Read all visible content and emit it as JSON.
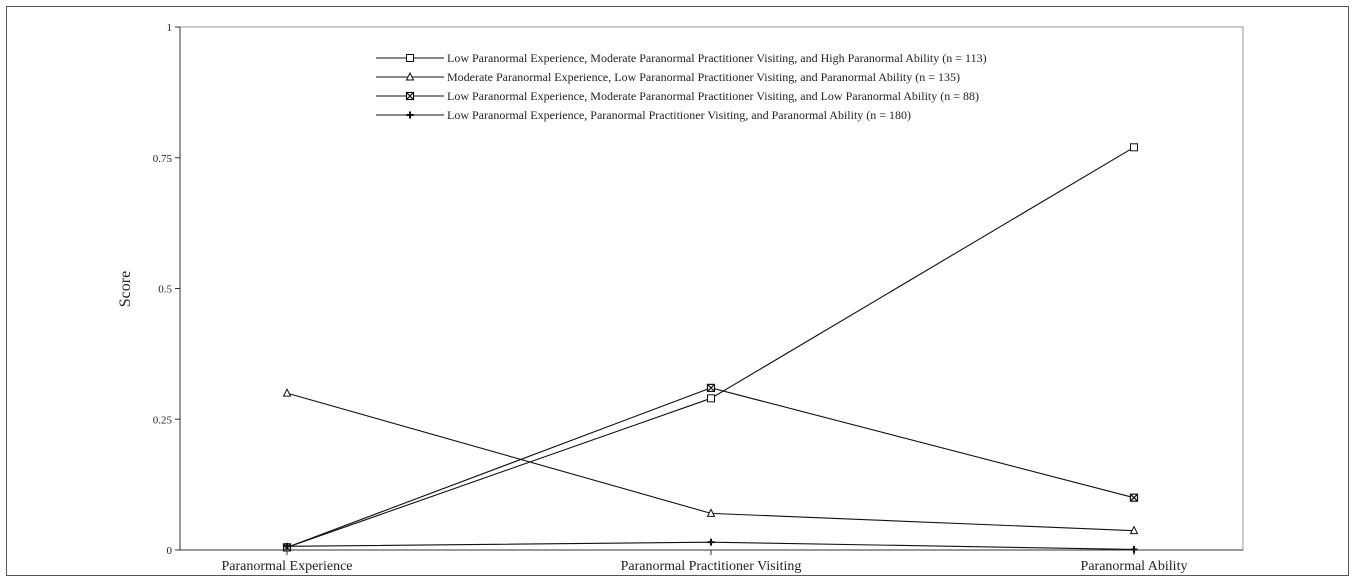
{
  "chart_data": {
    "type": "line",
    "categories": [
      "Paranormal Experience",
      "Paranormal Practitioner Visiting",
      "Paranormal Ability"
    ],
    "ylabel": "Score",
    "xlabel": "",
    "ylim": [
      0,
      1
    ],
    "yticks": [
      {
        "value": 0,
        "label": "0"
      },
      {
        "value": 0.25,
        "label": "0.25"
      },
      {
        "value": 0.5,
        "label": "0.5"
      },
      {
        "value": 0.75,
        "label": "0.75"
      },
      {
        "value": 1,
        "label": "1"
      }
    ],
    "grid": false,
    "legend_position": "top-center",
    "series": [
      {
        "name": "Low Paranormal Experience, Moderate Paranormal Practitioner Visiting, and High Paranormal Ability (n = 113)",
        "marker": "square",
        "values": [
          0.005,
          0.29,
          0.77
        ]
      },
      {
        "name": "Moderate Paranormal Experience, Low Paranormal Practitioner Visiting, and Paranormal Ability (n = 135)",
        "marker": "triangle",
        "values": [
          0.3,
          0.07,
          0.037
        ]
      },
      {
        "name": "Low Paranormal Experience, Moderate Paranormal Practitioner Visiting, and Low Paranormal Ability (n = 88)",
        "marker": "cross-square",
        "values": [
          0.005,
          0.31,
          0.1
        ]
      },
      {
        "name": "Low Paranormal Experience, Paranormal Practitioner Visiting, and Paranormal Ability (n = 180)",
        "marker": "plus",
        "values": [
          0.007,
          0.015,
          0.001
        ]
      }
    ]
  }
}
